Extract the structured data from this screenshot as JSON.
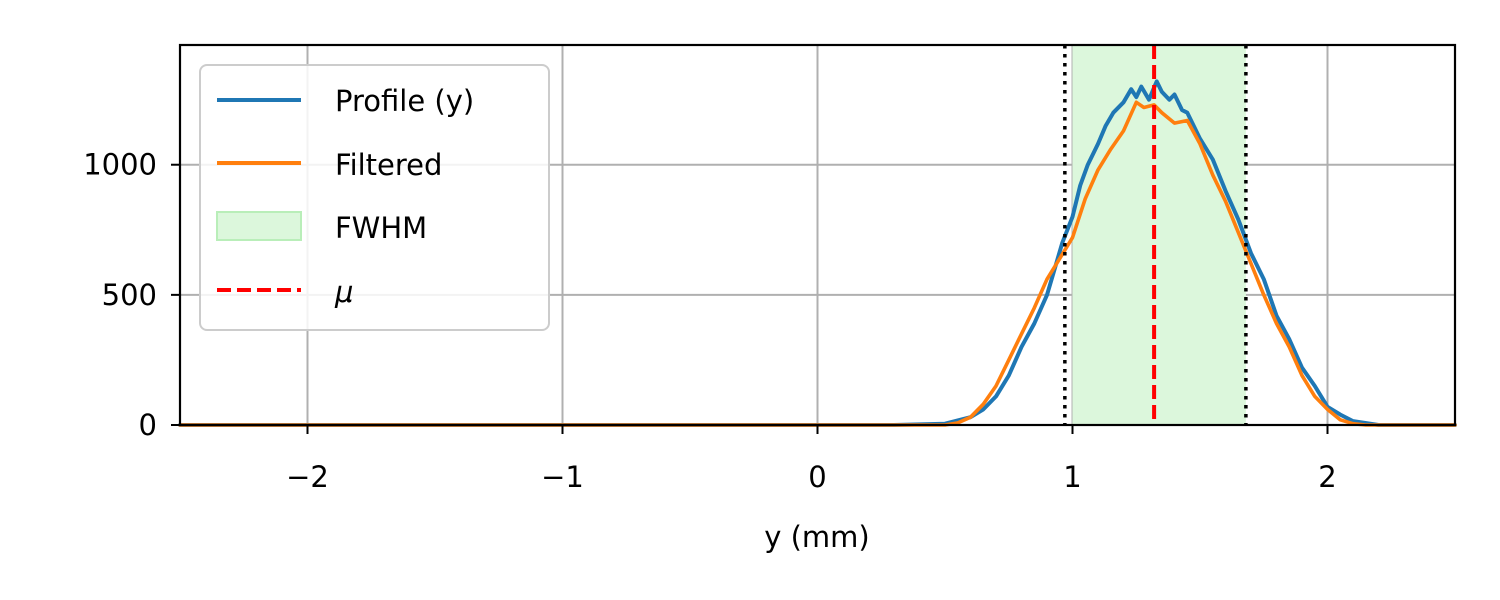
{
  "chart_data": {
    "type": "line",
    "title": "",
    "xlabel": "y (mm)",
    "ylabel": "",
    "xlim": [
      -2.5,
      2.5
    ],
    "ylim": [
      0,
      1460
    ],
    "grid": true,
    "legend_position": "top-left",
    "xticks": [
      -2,
      -1,
      0,
      1,
      2
    ],
    "xtick_labels": [
      "−2",
      "−1",
      "0",
      "1",
      "2"
    ],
    "yticks": [
      0,
      500,
      1000
    ],
    "ytick_labels": [
      "0",
      "500",
      "1000"
    ],
    "legend": [
      {
        "label": "Profile (y)",
        "kind": "line",
        "color": "#1f77b4"
      },
      {
        "label": "Filtered",
        "kind": "line",
        "color": "#ff7f0e"
      },
      {
        "label": "FWHM",
        "kind": "patch",
        "color": "#dcf7dc"
      },
      {
        "label": "μ",
        "kind": "dashed",
        "color": "#ff0000"
      }
    ],
    "series": [
      {
        "name": "Profile (y)",
        "color": "#1f77b4",
        "x": [
          -2.5,
          0.3,
          0.5,
          0.6,
          0.65,
          0.7,
          0.75,
          0.8,
          0.85,
          0.9,
          0.93,
          0.96,
          1.0,
          1.03,
          1.06,
          1.1,
          1.13,
          1.16,
          1.2,
          1.23,
          1.25,
          1.27,
          1.3,
          1.33,
          1.35,
          1.38,
          1.4,
          1.43,
          1.45,
          1.5,
          1.55,
          1.6,
          1.65,
          1.7,
          1.75,
          1.8,
          1.85,
          1.9,
          1.95,
          2.0,
          2.05,
          2.1,
          2.2,
          2.5
        ],
        "y": [
          0,
          0,
          5,
          30,
          60,
          110,
          190,
          300,
          390,
          500,
          600,
          700,
          800,
          920,
          1000,
          1080,
          1150,
          1200,
          1240,
          1290,
          1260,
          1300,
          1250,
          1320,
          1280,
          1250,
          1270,
          1210,
          1200,
          1100,
          1020,
          900,
          790,
          660,
          560,
          420,
          330,
          220,
          150,
          70,
          40,
          15,
          0,
          0
        ]
      },
      {
        "name": "Filtered",
        "color": "#ff7f0e",
        "x": [
          -2.5,
          0.3,
          0.5,
          0.55,
          0.6,
          0.65,
          0.7,
          0.75,
          0.8,
          0.85,
          0.9,
          0.95,
          1.0,
          1.05,
          1.1,
          1.15,
          1.2,
          1.25,
          1.28,
          1.32,
          1.35,
          1.4,
          1.45,
          1.5,
          1.55,
          1.6,
          1.65,
          1.7,
          1.75,
          1.8,
          1.85,
          1.9,
          1.95,
          2.0,
          2.05,
          2.1,
          2.15,
          2.5
        ],
        "y": [
          0,
          0,
          0,
          8,
          30,
          80,
          150,
          250,
          350,
          450,
          560,
          640,
          720,
          870,
          980,
          1060,
          1130,
          1240,
          1220,
          1230,
          1200,
          1160,
          1170,
          1080,
          960,
          860,
          740,
          620,
          500,
          390,
          300,
          190,
          110,
          60,
          20,
          5,
          0,
          0
        ]
      }
    ],
    "fwhm": [
      0.97,
      1.68
    ],
    "mu": 1.32,
    "fwhm_shade_range": [
      1.0,
      1.68
    ]
  }
}
